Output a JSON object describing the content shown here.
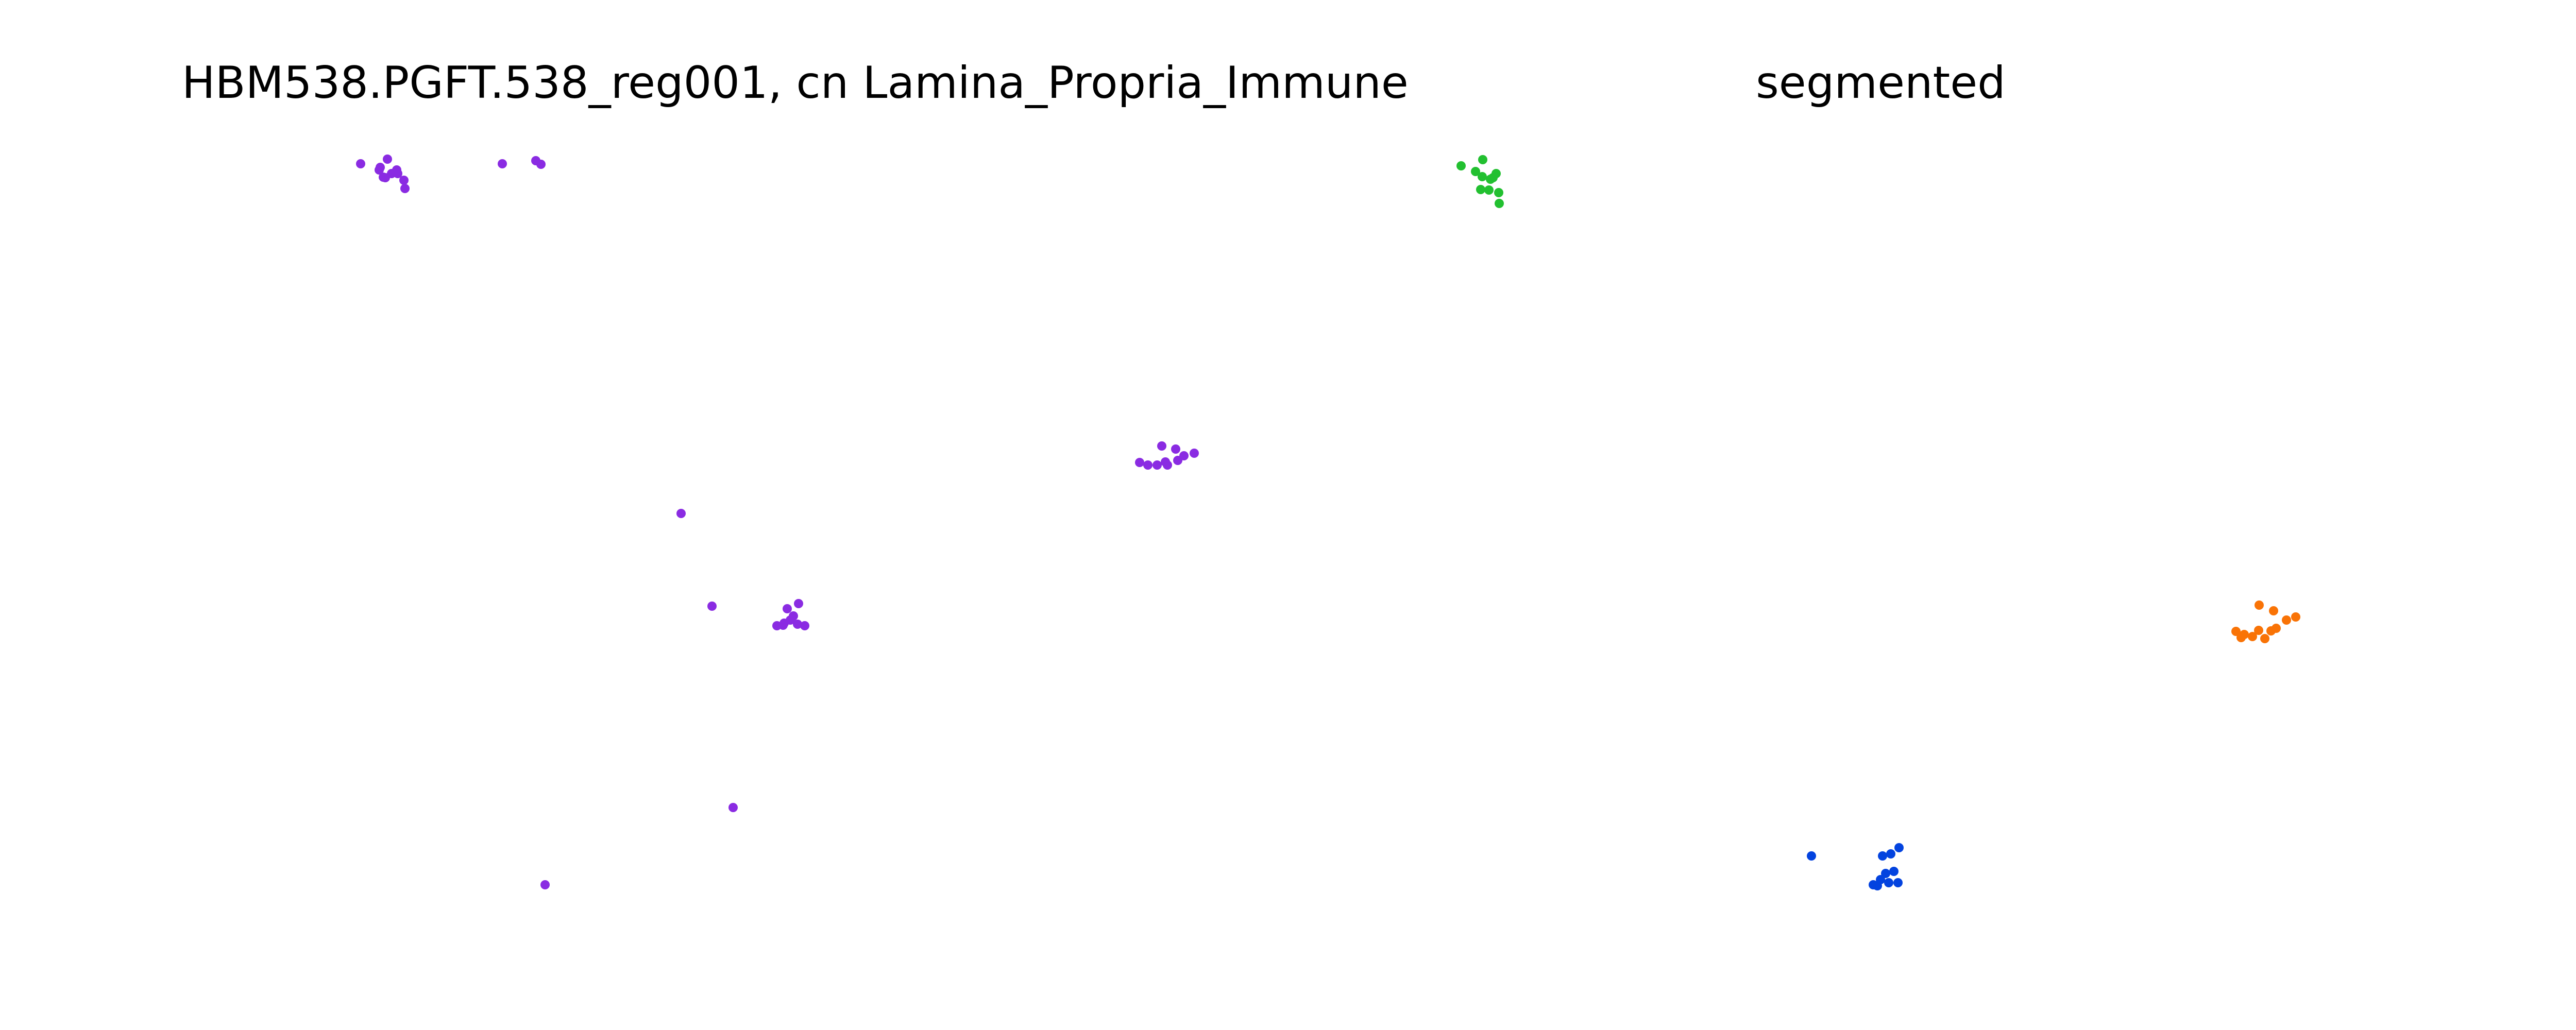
{
  "chart_data": [
    {
      "type": "scatter",
      "title": "HBM538.PGFT.538_reg001, cn Lamina_Propria_Immune",
      "axes_visible": false,
      "grid": false,
      "ylim_inverted": true,
      "series": [
        {
          "color": "#8a2be2",
          "points": [
            [
              700,
              318
            ],
            [
              738,
              325
            ],
            [
              752,
              309
            ],
            [
              770,
              330
            ],
            [
              744,
              344
            ],
            [
              760,
              337
            ],
            [
              784,
              350
            ],
            [
              786,
              366
            ],
            [
              772,
              337
            ],
            [
              736,
              330
            ],
            [
              748,
              345
            ],
            [
              975,
              318
            ],
            [
              1040,
              312
            ],
            [
              1050,
              319
            ],
            [
              2212,
              898
            ],
            [
              2228,
              903
            ],
            [
              2246,
              903
            ],
            [
              2262,
              897
            ],
            [
              2286,
              894
            ],
            [
              2298,
              885
            ],
            [
              2318,
              880
            ],
            [
              2255,
              866
            ],
            [
              2282,
              872
            ],
            [
              2266,
              903
            ],
            [
              1322,
              997
            ],
            [
              1382,
              1177
            ],
            [
              1508,
              1215
            ],
            [
              1522,
              1210
            ],
            [
              1534,
              1204
            ],
            [
              1548,
              1212
            ],
            [
              1562,
              1215
            ],
            [
              1528,
              1182
            ],
            [
              1550,
              1172
            ],
            [
              1520,
              1214
            ],
            [
              1540,
              1196
            ],
            [
              1423,
              1568
            ],
            [
              1058,
              1718
            ]
          ]
        }
      ]
    },
    {
      "type": "scatter",
      "title": "segmented",
      "axes_visible": false,
      "grid": false,
      "ylim_inverted": true,
      "series": [
        {
          "color": "#22c030",
          "points": [
            [
              2836,
              322
            ],
            [
              2878,
              310
            ],
            [
              2864,
              333
            ],
            [
              2877,
              343
            ],
            [
              2893,
              348
            ],
            [
              2904,
              337
            ],
            [
              2898,
              345
            ],
            [
              2874,
              368
            ],
            [
              2890,
              369
            ],
            [
              2909,
              374
            ],
            [
              2910,
              395
            ]
          ]
        },
        {
          "color": "#f97306",
          "points": [
            [
              4340,
              1226
            ],
            [
              4356,
              1232
            ],
            [
              4372,
              1236
            ],
            [
              4384,
              1224
            ],
            [
              4396,
              1240
            ],
            [
              4418,
              1220
            ],
            [
              4438,
              1204
            ],
            [
              4456,
              1198
            ],
            [
              4408,
              1225
            ],
            [
              4385,
              1175
            ],
            [
              4413,
              1186
            ],
            [
              4350,
              1238
            ]
          ]
        },
        {
          "color": "#0343df",
          "points": [
            [
              3516,
              1662
            ],
            [
              3636,
              1718
            ],
            [
              3650,
              1708
            ],
            [
              3666,
              1714
            ],
            [
              3684,
              1714
            ],
            [
              3660,
              1696
            ],
            [
              3676,
              1692
            ],
            [
              3654,
              1662
            ],
            [
              3670,
              1658
            ],
            [
              3686,
              1646
            ],
            [
              3644,
              1720
            ]
          ]
        }
      ]
    }
  ]
}
